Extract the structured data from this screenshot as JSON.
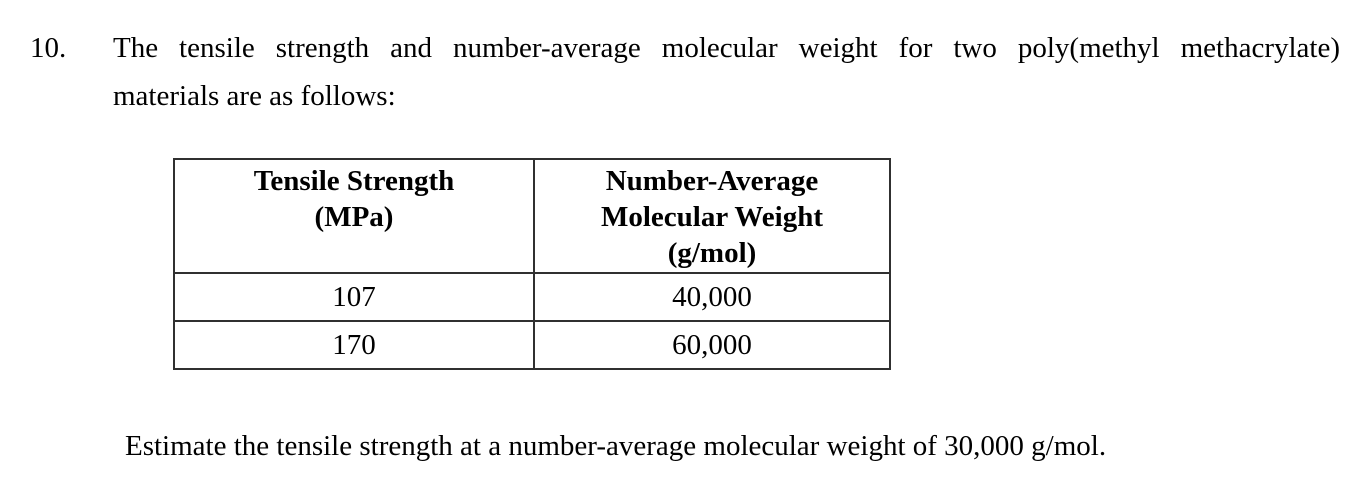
{
  "page": {
    "background_color": "#ffffff",
    "text_color": "#000000",
    "table_border_color": "#303030"
  },
  "problem": {
    "number": "10.",
    "intro_lines": [
      "The tensile strength and number-average molecular weight for two poly(methyl methacrylate)",
      "materials are as follows:"
    ],
    "question": "Estimate the tensile strength at a number-average molecular weight of 30,000 g/mol."
  },
  "table": {
    "headers": [
      "Tensile Strength\n(MPa)",
      "Number-Average\nMolecular Weight\n(g/mol)"
    ],
    "rows": [
      [
        "107",
        "40,000"
      ],
      [
        "170",
        "60,000"
      ]
    ]
  }
}
